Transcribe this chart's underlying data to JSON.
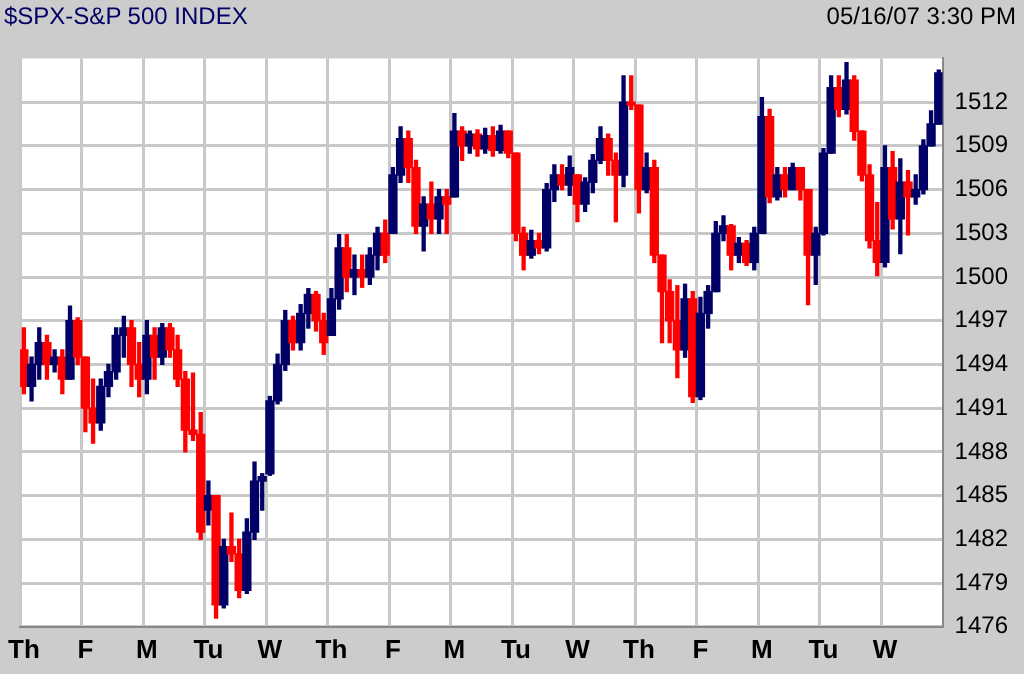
{
  "chart_data": {
    "type": "candlestick",
    "title": "$SPX-S&P 500 INDEX",
    "annotations": [
      "05/16/07 3:30 PM"
    ],
    "categories": [
      "Th",
      null,
      null,
      null,
      null,
      null,
      null,
      null,
      "F",
      null,
      null,
      null,
      null,
      null,
      null,
      null,
      "M",
      null,
      null,
      null,
      null,
      null,
      null,
      null,
      "Tu",
      null,
      null,
      null,
      null,
      null,
      null,
      null,
      "W",
      null,
      null,
      null,
      null,
      null,
      null,
      null,
      "Th",
      null,
      null,
      null,
      null,
      null,
      null,
      null,
      "F",
      null,
      null,
      null,
      null,
      null,
      null,
      null,
      "M",
      null,
      null,
      null,
      null,
      null,
      null,
      null,
      "Tu",
      null,
      null,
      null,
      null,
      null,
      null,
      null,
      "W",
      null,
      null,
      null,
      null,
      null,
      null,
      null,
      "Th",
      null,
      null,
      null,
      null,
      null,
      null,
      null,
      "F",
      null,
      null,
      null,
      null,
      null,
      null,
      null,
      "M",
      null,
      null,
      null,
      null,
      null,
      null,
      null,
      "Tu",
      null,
      null,
      null,
      null,
      null,
      null,
      null,
      "W",
      null,
      null,
      null,
      null,
      null,
      null,
      null
    ],
    "ohlc": [
      [
        1495,
        1496.5,
        1492,
        1492.5
      ],
      [
        1492.5,
        1494.5,
        1491.5,
        1494
      ],
      [
        1494,
        1496.5,
        1493,
        1495.5
      ],
      [
        1495.5,
        1496,
        1493,
        1494
      ],
      [
        1494,
        1495,
        1493.5,
        1494.5
      ],
      [
        1494.5,
        1495,
        1492,
        1493
      ],
      [
        1493,
        1498,
        1493,
        1497
      ],
      [
        1497,
        1497.2,
        1494,
        1494.5
      ],
      [
        1494.5,
        1494.5,
        1489.4,
        1491
      ],
      [
        1491,
        1493,
        1488.6,
        1490
      ],
      [
        1490,
        1493,
        1489.5,
        1492.5
      ],
      [
        1492.5,
        1494,
        1491.8,
        1493.5
      ],
      [
        1493.5,
        1496.5,
        1493,
        1496
      ],
      [
        1496,
        1497.3,
        1494.5,
        1496.5
      ],
      [
        1496.5,
        1497,
        1492.5,
        1494
      ],
      [
        1494,
        1495.5,
        1491.8,
        1493
      ],
      [
        1493,
        1497,
        1492,
        1496
      ],
      [
        1496,
        1496.5,
        1493,
        1494.5
      ],
      [
        1494.5,
        1496.8,
        1494,
        1496.5
      ],
      [
        1496.5,
        1496.8,
        1494.5,
        1495
      ],
      [
        1495,
        1496,
        1492.5,
        1493
      ],
      [
        1493,
        1493.5,
        1488,
        1489.5
      ],
      [
        1489.5,
        1493.4,
        1488.8,
        1489.2
      ],
      [
        1489.2,
        1490.7,
        1482,
        1482.5
      ],
      [
        1484,
        1486,
        1483,
        1485
      ],
      [
        1485,
        1485,
        1476.6,
        1477.5
      ],
      [
        1477.5,
        1482,
        1477.3,
        1481.5
      ],
      [
        1481.5,
        1483.8,
        1480.5,
        1481
      ],
      [
        1481,
        1482,
        1478,
        1478.5
      ],
      [
        1478.5,
        1483.4,
        1478.3,
        1482.5
      ],
      [
        1482.5,
        1487.3,
        1482,
        1486
      ],
      [
        1486,
        1486.5,
        1484,
        1486.3
      ],
      [
        1486.5,
        1491.8,
        1486.4,
        1491.5
      ],
      [
        1491.5,
        1494.7,
        1491.3,
        1494
      ],
      [
        1494,
        1497.7,
        1493.6,
        1497
      ],
      [
        1497,
        1497.3,
        1495,
        1495.5
      ],
      [
        1495.5,
        1498.1,
        1495,
        1497.5
      ],
      [
        1497.5,
        1499.2,
        1496.5,
        1498.8
      ],
      [
        1498.8,
        1499,
        1496.3,
        1497
      ],
      [
        1497,
        1497.5,
        1494.7,
        1495.5
      ],
      [
        1496,
        1499.2,
        1496,
        1498.5
      ],
      [
        1498.5,
        1502.9,
        1497.8,
        1502
      ],
      [
        1502,
        1502.9,
        1499,
        1500
      ],
      [
        1500,
        1501.5,
        1498.8,
        1500.5
      ],
      [
        1500.5,
        1501.5,
        1499.3,
        1500
      ],
      [
        1500,
        1502,
        1499.5,
        1501.5
      ],
      [
        1501.5,
        1503.4,
        1500.5,
        1503
      ],
      [
        1503,
        1503.9,
        1501,
        1501.5
      ],
      [
        1503,
        1507.5,
        1503,
        1507
      ],
      [
        1507,
        1510.3,
        1506.5,
        1509.5
      ],
      [
        1509.5,
        1510,
        1506.5,
        1507.5
      ],
      [
        1507.5,
        1508,
        1503,
        1503.5
      ],
      [
        1503.5,
        1505.5,
        1501.8,
        1505
      ],
      [
        1505,
        1506.5,
        1503,
        1504
      ],
      [
        1504,
        1506,
        1503,
        1505.5
      ],
      [
        1505.5,
        1506,
        1503,
        1505
      ],
      [
        1505.5,
        1511.2,
        1505.5,
        1510
      ],
      [
        1510,
        1510.3,
        1508,
        1509
      ],
      [
        1509,
        1510,
        1508.5,
        1509.8
      ],
      [
        1509.8,
        1510.1,
        1508.3,
        1508.8
      ],
      [
        1508.8,
        1510.2,
        1508.5,
        1509.7
      ],
      [
        1509.7,
        1510.3,
        1508.3,
        1508.7
      ],
      [
        1508.7,
        1510.4,
        1508.5,
        1510
      ],
      [
        1510,
        1510,
        1508.2,
        1508.5
      ],
      [
        1508.5,
        1508.5,
        1502.5,
        1503
      ],
      [
        1503,
        1503.4,
        1500.5,
        1501.5
      ],
      [
        1501.5,
        1503.2,
        1501.3,
        1502.5
      ],
      [
        1502.5,
        1503,
        1501.6,
        1502
      ],
      [
        1502,
        1506.4,
        1501.8,
        1506
      ],
      [
        1506,
        1507.7,
        1505.2,
        1507
      ],
      [
        1507,
        1507.7,
        1506,
        1506.3
      ],
      [
        1506.3,
        1508.3,
        1505.6,
        1507.5
      ],
      [
        1507,
        1507,
        1503.8,
        1505
      ],
      [
        1505,
        1506.8,
        1504.5,
        1506.5
      ],
      [
        1506.5,
        1508.4,
        1505.8,
        1508
      ],
      [
        1508,
        1510.3,
        1507.8,
        1509.5
      ],
      [
        1509.5,
        1509.8,
        1507,
        1508
      ],
      [
        1508,
        1508.5,
        1503.8,
        1507
      ],
      [
        1507,
        1513.8,
        1506.2,
        1512
      ],
      [
        1512,
        1513.8,
        1511.5,
        1511.8
      ],
      [
        1511.8,
        1511.8,
        1504.4,
        1506
      ],
      [
        1506,
        1508.5,
        1505.8,
        1507.5
      ],
      [
        1507.5,
        1508,
        1501,
        1501.5
      ],
      [
        1501.5,
        1501.5,
        1495.5,
        1499
      ],
      [
        1499,
        1499.8,
        1495.5,
        1497
      ],
      [
        1497,
        1499.4,
        1493.1,
        1495
      ],
      [
        1495,
        1499.5,
        1494.5,
        1498.5
      ],
      [
        1498.5,
        1499,
        1491.4,
        1491.8
      ],
      [
        1491.8,
        1498.6,
        1491.6,
        1497.5
      ],
      [
        1497.5,
        1499.4,
        1496.5,
        1499
      ],
      [
        1499,
        1503.8,
        1499,
        1503
      ],
      [
        1503,
        1504.2,
        1502.5,
        1503.5
      ],
      [
        1503.5,
        1503.6,
        1500.5,
        1501.5
      ],
      [
        1501.5,
        1502.7,
        1501,
        1502.3
      ],
      [
        1502.3,
        1502.5,
        1500.8,
        1501
      ],
      [
        1501,
        1503.4,
        1500.5,
        1503
      ],
      [
        1503,
        1512.3,
        1503,
        1511
      ],
      [
        1511,
        1511.5,
        1505.1,
        1505.5
      ],
      [
        1505.5,
        1507.5,
        1505.3,
        1507
      ],
      [
        1507,
        1507.5,
        1505.5,
        1506
      ],
      [
        1506,
        1507.8,
        1506,
        1507.5
      ],
      [
        1507.5,
        1507.5,
        1505.3,
        1506
      ],
      [
        1506,
        1506,
        1498.1,
        1501.5
      ],
      [
        1501.5,
        1503.4,
        1499.5,
        1503
      ],
      [
        1503,
        1508.8,
        1502.9,
        1508.5
      ],
      [
        1508.5,
        1513.8,
        1508.5,
        1513
      ],
      [
        1513,
        1513.8,
        1511,
        1511.5
      ],
      [
        1511.5,
        1514.7,
        1511.2,
        1513.5
      ],
      [
        1513.5,
        1513.8,
        1509.4,
        1510
      ],
      [
        1510,
        1510,
        1506.6,
        1507
      ],
      [
        1507,
        1507.7,
        1502,
        1502.5
      ],
      [
        1502.5,
        1505.1,
        1500.1,
        1501
      ],
      [
        1501,
        1509,
        1500.7,
        1507.5
      ],
      [
        1507.5,
        1508.6,
        1503.3,
        1504
      ],
      [
        1504,
        1508.1,
        1501.6,
        1506.5
      ],
      [
        1506.5,
        1507.3,
        1502.9,
        1505.5
      ],
      [
        1505.5,
        1507,
        1505,
        1506
      ],
      [
        1506,
        1509.4,
        1505.7,
        1509
      ],
      [
        1509,
        1511.4,
        1509,
        1510.5
      ],
      [
        1510.5,
        1514.2,
        1510.5,
        1514
      ]
    ],
    "colors": [
      "#ff0000",
      "#000066",
      "#000066",
      "#ff0000",
      "#000066",
      "#ff0000",
      "#000066",
      "#ff0000",
      "#ff0000",
      "#ff0000",
      "#000066",
      "#000066",
      "#000066",
      "#000066",
      "#ff0000",
      "#ff0000",
      "#000066",
      "#ff0000",
      "#000066",
      "#ff0000",
      "#ff0000",
      "#ff0000",
      "#ff0000",
      "#ff0000",
      "#000066",
      "#ff0000",
      "#000066",
      "#ff0000",
      "#ff0000",
      "#000066",
      "#000066",
      "#000066",
      "#000066",
      "#000066",
      "#000066",
      "#ff0000",
      "#000066",
      "#000066",
      "#ff0000",
      "#ff0000",
      "#000066",
      "#000066",
      "#ff0000",
      "#000066",
      "#ff0000",
      "#000066",
      "#000066",
      "#ff0000",
      "#000066",
      "#000066",
      "#ff0000",
      "#ff0000",
      "#000066",
      "#ff0000",
      "#000066",
      "#ff0000",
      "#000066",
      "#ff0000",
      "#000066",
      "#ff0000",
      "#000066",
      "#ff0000",
      "#000066",
      "#ff0000",
      "#ff0000",
      "#ff0000",
      "#000066",
      "#ff0000",
      "#000066",
      "#000066",
      "#ff0000",
      "#000066",
      "#ff0000",
      "#000066",
      "#000066",
      "#000066",
      "#ff0000",
      "#ff0000",
      "#000066",
      "#ff0000",
      "#ff0000",
      "#000066",
      "#ff0000",
      "#ff0000",
      "#ff0000",
      "#ff0000",
      "#000066",
      "#ff0000",
      "#000066",
      "#000066",
      "#000066",
      "#000066",
      "#ff0000",
      "#000066",
      "#ff0000",
      "#000066",
      "#000066",
      "#ff0000",
      "#000066",
      "#ff0000",
      "#000066",
      "#ff0000",
      "#ff0000",
      "#000066",
      "#000066",
      "#000066",
      "#ff0000",
      "#000066",
      "#ff0000",
      "#ff0000",
      "#ff0000",
      "#ff0000",
      "#000066",
      "#ff0000",
      "#000066",
      "#ff0000",
      "#000066",
      "#000066",
      "#000066",
      "#000066"
    ],
    "ylim": [
      1476,
      1515
    ],
    "yticks": [
      1476,
      1479,
      1482,
      1485,
      1488,
      1491,
      1494,
      1497,
      1500,
      1503,
      1506,
      1509,
      1512
    ],
    "grid": true
  }
}
